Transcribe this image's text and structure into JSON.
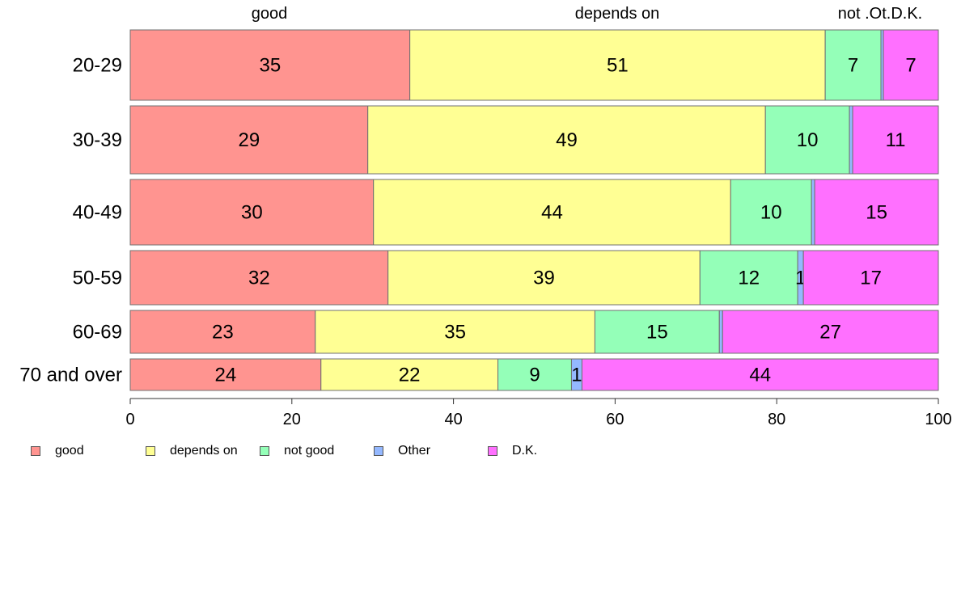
{
  "chart_data": {
    "type": "bar",
    "orientation": "horizontal",
    "stacked": true,
    "title": "",
    "xlabel": "",
    "ylabel": "",
    "xlim": [
      0,
      100
    ],
    "x_ticks": [
      0,
      20,
      40,
      60,
      80,
      100
    ],
    "top_labels": [
      "good",
      "depends on",
      "not .Ot.D.K."
    ],
    "categories": [
      "20-29",
      "30-39",
      "40-49",
      "50-59",
      "60-69",
      "70 and over"
    ],
    "series": [
      {
        "name": "good",
        "color": "#FF9490",
        "values": [
          34.6,
          29.4,
          30.1,
          31.9,
          22.9,
          23.6
        ],
        "labels": [
          "35",
          "29",
          "30",
          "32",
          "23",
          "24"
        ]
      },
      {
        "name": "depends on",
        "color": "#FFFF94",
        "values": [
          51.4,
          49.2,
          44.2,
          38.6,
          34.6,
          21.9
        ],
        "labels": [
          "51",
          "49",
          "44",
          "39",
          "35",
          "22"
        ]
      },
      {
        "name": "not good",
        "color": "#94FFB8",
        "values": [
          6.9,
          10.4,
          10.0,
          12.1,
          15.4,
          9.1
        ],
        "labels": [
          "7",
          "10",
          "10",
          "12",
          "15",
          "9"
        ]
      },
      {
        "name": "Other",
        "color": "#94B8FF",
        "values": [
          0.3,
          0.4,
          0.4,
          0.7,
          0.4,
          1.3
        ],
        "labels": [
          "",
          "",
          "",
          "1",
          "",
          "1"
        ]
      },
      {
        "name": "D.K.",
        "color": "#FF70FF",
        "values": [
          6.8,
          10.6,
          15.3,
          16.7,
          26.7,
          44.1
        ],
        "labels": [
          "7",
          "11",
          "15",
          "17",
          "27",
          "44"
        ]
      }
    ],
    "legend": {
      "position": "bottom-left",
      "entries": [
        "good",
        "depends on",
        "not good",
        "Other",
        "D.K."
      ]
    },
    "grid": false
  }
}
